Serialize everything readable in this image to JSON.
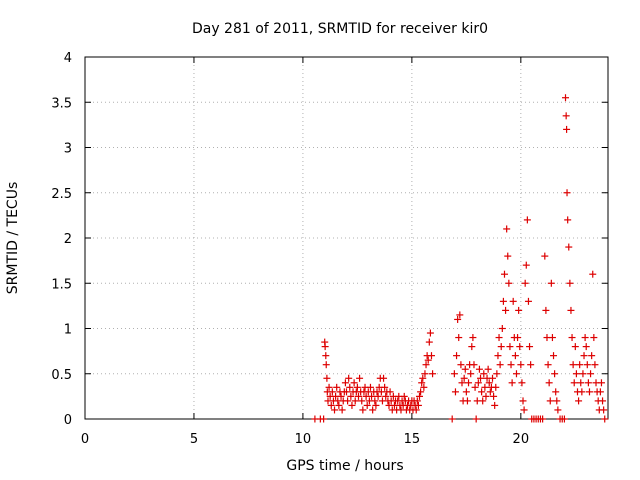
{
  "chart_data": {
    "type": "scatter",
    "title": "Day 281 of 2011, SRMTID for receiver kir0",
    "xlabel": "GPS time / hours",
    "ylabel": "SRMTID / TECUs",
    "xlim": [
      0,
      24
    ],
    "ylim": [
      0,
      4
    ],
    "x_ticks": [
      0,
      5,
      10,
      15,
      20
    ],
    "x_tick_labels": [
      "0",
      "5",
      "10",
      "15",
      "20"
    ],
    "y_ticks": [
      0,
      0.5,
      1,
      1.5,
      2,
      2.5,
      3,
      3.5,
      4
    ],
    "y_tick_labels": [
      "0",
      "0.5",
      "1",
      "1.5",
      "2",
      "2.5",
      "3",
      "3.5",
      "4"
    ],
    "grid": true,
    "marker": "+",
    "series": [
      {
        "name": "kir0",
        "color": "#dd0000",
        "points": [
          [
            10.55,
            0.0
          ],
          [
            10.8,
            0.0
          ],
          [
            10.95,
            0.0
          ],
          [
            11.0,
            0.85
          ],
          [
            11.02,
            0.8
          ],
          [
            11.05,
            0.7
          ],
          [
            11.07,
            0.6
          ],
          [
            11.1,
            0.45
          ],
          [
            11.12,
            0.3
          ],
          [
            11.15,
            0.2
          ],
          [
            11.2,
            0.35
          ],
          [
            11.25,
            0.25
          ],
          [
            11.3,
            0.15
          ],
          [
            11.35,
            0.3
          ],
          [
            11.4,
            0.2
          ],
          [
            11.45,
            0.1
          ],
          [
            11.5,
            0.25
          ],
          [
            11.55,
            0.35
          ],
          [
            11.6,
            0.2
          ],
          [
            11.65,
            0.15
          ],
          [
            11.7,
            0.3
          ],
          [
            11.75,
            0.25
          ],
          [
            11.8,
            0.1
          ],
          [
            11.85,
            0.2
          ],
          [
            11.9,
            0.3
          ],
          [
            11.95,
            0.4
          ],
          [
            12.0,
            0.3
          ],
          [
            12.05,
            0.2
          ],
          [
            12.1,
            0.45
          ],
          [
            12.15,
            0.35
          ],
          [
            12.2,
            0.25
          ],
          [
            12.25,
            0.15
          ],
          [
            12.3,
            0.3
          ],
          [
            12.35,
            0.4
          ],
          [
            12.4,
            0.2
          ],
          [
            12.45,
            0.3
          ],
          [
            12.5,
            0.35
          ],
          [
            12.55,
            0.25
          ],
          [
            12.6,
            0.45
          ],
          [
            12.65,
            0.3
          ],
          [
            12.7,
            0.2
          ],
          [
            12.75,
            0.1
          ],
          [
            12.8,
            0.3
          ],
          [
            12.85,
            0.35
          ],
          [
            12.9,
            0.25
          ],
          [
            12.95,
            0.15
          ],
          [
            13.0,
            0.3
          ],
          [
            13.05,
            0.2
          ],
          [
            13.1,
            0.35
          ],
          [
            13.15,
            0.25
          ],
          [
            13.2,
            0.1
          ],
          [
            13.25,
            0.3
          ],
          [
            13.3,
            0.2
          ],
          [
            13.35,
            0.15
          ],
          [
            13.4,
            0.3
          ],
          [
            13.45,
            0.25
          ],
          [
            13.5,
            0.35
          ],
          [
            13.55,
            0.45
          ],
          [
            13.6,
            0.3
          ],
          [
            13.65,
            0.2
          ],
          [
            13.7,
            0.45
          ],
          [
            13.75,
            0.35
          ],
          [
            13.8,
            0.25
          ],
          [
            13.85,
            0.3
          ],
          [
            13.9,
            0.2
          ],
          [
            13.95,
            0.15
          ],
          [
            14.0,
            0.3
          ],
          [
            14.05,
            0.2
          ],
          [
            14.1,
            0.1
          ],
          [
            14.15,
            0.25
          ],
          [
            14.2,
            0.15
          ],
          [
            14.25,
            0.2
          ],
          [
            14.3,
            0.1
          ],
          [
            14.35,
            0.2
          ],
          [
            14.4,
            0.25
          ],
          [
            14.45,
            0.15
          ],
          [
            14.5,
            0.1
          ],
          [
            14.55,
            0.2
          ],
          [
            14.6,
            0.15
          ],
          [
            14.65,
            0.25
          ],
          [
            14.7,
            0.2
          ],
          [
            14.75,
            0.1
          ],
          [
            14.8,
            0.15
          ],
          [
            14.85,
            0.2
          ],
          [
            14.9,
            0.1
          ],
          [
            14.95,
            0.15
          ],
          [
            15.0,
            0.2
          ],
          [
            15.05,
            0.1
          ],
          [
            15.1,
            0.2
          ],
          [
            15.15,
            0.15
          ],
          [
            15.2,
            0.1
          ],
          [
            15.25,
            0.2
          ],
          [
            15.3,
            0.15
          ],
          [
            15.35,
            0.25
          ],
          [
            15.4,
            0.3
          ],
          [
            15.45,
            0.4
          ],
          [
            15.5,
            0.45
          ],
          [
            15.55,
            0.35
          ],
          [
            15.6,
            0.5
          ],
          [
            15.65,
            0.6
          ],
          [
            15.7,
            0.7
          ],
          [
            15.75,
            0.65
          ],
          [
            15.8,
            0.85
          ],
          [
            15.85,
            0.95
          ],
          [
            15.9,
            0.7
          ],
          [
            15.95,
            0.5
          ],
          [
            16.85,
            0.0
          ],
          [
            16.95,
            0.5
          ],
          [
            17.0,
            0.3
          ],
          [
            17.05,
            0.7
          ],
          [
            17.1,
            1.1
          ],
          [
            17.15,
            0.9
          ],
          [
            17.2,
            1.15
          ],
          [
            17.25,
            0.6
          ],
          [
            17.3,
            0.4
          ],
          [
            17.35,
            0.2
          ],
          [
            17.4,
            0.45
          ],
          [
            17.45,
            0.55
          ],
          [
            17.5,
            0.3
          ],
          [
            17.55,
            0.2
          ],
          [
            17.6,
            0.4
          ],
          [
            17.65,
            0.6
          ],
          [
            17.7,
            0.5
          ],
          [
            17.75,
            0.8
          ],
          [
            17.8,
            0.9
          ],
          [
            17.85,
            0.6
          ],
          [
            17.9,
            0.35
          ],
          [
            17.95,
            0.0
          ],
          [
            18.0,
            0.2
          ],
          [
            18.05,
            0.4
          ],
          [
            18.1,
            0.55
          ],
          [
            18.15,
            0.45
          ],
          [
            18.2,
            0.3
          ],
          [
            18.25,
            0.2
          ],
          [
            18.3,
            0.5
          ],
          [
            18.35,
            0.35
          ],
          [
            18.4,
            0.25
          ],
          [
            18.45,
            0.45
          ],
          [
            18.5,
            0.55
          ],
          [
            18.55,
            0.4
          ],
          [
            18.6,
            0.3
          ],
          [
            18.65,
            0.35
          ],
          [
            18.7,
            0.45
          ],
          [
            18.75,
            0.25
          ],
          [
            18.8,
            0.15
          ],
          [
            18.85,
            0.35
          ],
          [
            18.9,
            0.5
          ],
          [
            18.95,
            0.7
          ],
          [
            19.0,
            0.9
          ],
          [
            19.05,
            0.6
          ],
          [
            19.1,
            0.8
          ],
          [
            19.15,
            1.0
          ],
          [
            19.2,
            1.3
          ],
          [
            19.25,
            1.6
          ],
          [
            19.3,
            1.2
          ],
          [
            19.35,
            2.1
          ],
          [
            19.4,
            1.8
          ],
          [
            19.45,
            1.5
          ],
          [
            19.5,
            0.8
          ],
          [
            19.55,
            0.6
          ],
          [
            19.6,
            0.4
          ],
          [
            19.65,
            1.3
          ],
          [
            19.7,
            0.9
          ],
          [
            19.75,
            0.7
          ],
          [
            19.8,
            0.5
          ],
          [
            19.85,
            0.9
          ],
          [
            19.9,
            1.2
          ],
          [
            19.95,
            0.8
          ],
          [
            20.0,
            0.6
          ],
          [
            20.05,
            0.4
          ],
          [
            20.1,
            0.2
          ],
          [
            20.15,
            0.1
          ],
          [
            20.2,
            1.5
          ],
          [
            20.25,
            1.7
          ],
          [
            20.3,
            2.2
          ],
          [
            20.35,
            1.3
          ],
          [
            20.4,
            0.8
          ],
          [
            20.45,
            0.6
          ],
          [
            20.5,
            0.0
          ],
          [
            20.6,
            0.0
          ],
          [
            20.7,
            0.0
          ],
          [
            20.8,
            0.0
          ],
          [
            20.9,
            0.0
          ],
          [
            21.0,
            0.0
          ],
          [
            21.1,
            1.8
          ],
          [
            21.15,
            1.2
          ],
          [
            21.2,
            0.9
          ],
          [
            21.25,
            0.6
          ],
          [
            21.3,
            0.4
          ],
          [
            21.35,
            0.2
          ],
          [
            21.4,
            1.5
          ],
          [
            21.45,
            0.9
          ],
          [
            21.5,
            0.7
          ],
          [
            21.55,
            0.5
          ],
          [
            21.6,
            0.3
          ],
          [
            21.65,
            0.2
          ],
          [
            21.7,
            0.1
          ],
          [
            21.8,
            0.0
          ],
          [
            21.9,
            0.0
          ],
          [
            22.0,
            0.0
          ],
          [
            22.05,
            3.55
          ],
          [
            22.08,
            3.35
          ],
          [
            22.1,
            3.2
          ],
          [
            22.12,
            2.5
          ],
          [
            22.15,
            2.2
          ],
          [
            22.2,
            1.9
          ],
          [
            22.25,
            1.5
          ],
          [
            22.3,
            1.2
          ],
          [
            22.35,
            0.9
          ],
          [
            22.4,
            0.6
          ],
          [
            22.45,
            0.4
          ],
          [
            22.5,
            0.8
          ],
          [
            22.55,
            0.5
          ],
          [
            22.6,
            0.3
          ],
          [
            22.65,
            0.2
          ],
          [
            22.7,
            0.6
          ],
          [
            22.75,
            0.4
          ],
          [
            22.8,
            0.3
          ],
          [
            22.85,
            0.5
          ],
          [
            22.9,
            0.7
          ],
          [
            22.95,
            0.9
          ],
          [
            23.0,
            0.8
          ],
          [
            23.05,
            0.6
          ],
          [
            23.1,
            0.4
          ],
          [
            23.15,
            0.3
          ],
          [
            23.2,
            0.5
          ],
          [
            23.25,
            0.7
          ],
          [
            23.3,
            1.6
          ],
          [
            23.35,
            0.9
          ],
          [
            23.4,
            0.6
          ],
          [
            23.45,
            0.4
          ],
          [
            23.5,
            0.3
          ],
          [
            23.55,
            0.2
          ],
          [
            23.6,
            0.1
          ],
          [
            23.65,
            0.3
          ],
          [
            23.7,
            0.4
          ],
          [
            23.75,
            0.2
          ],
          [
            23.8,
            0.1
          ],
          [
            23.85,
            0.0
          ]
        ]
      }
    ]
  }
}
